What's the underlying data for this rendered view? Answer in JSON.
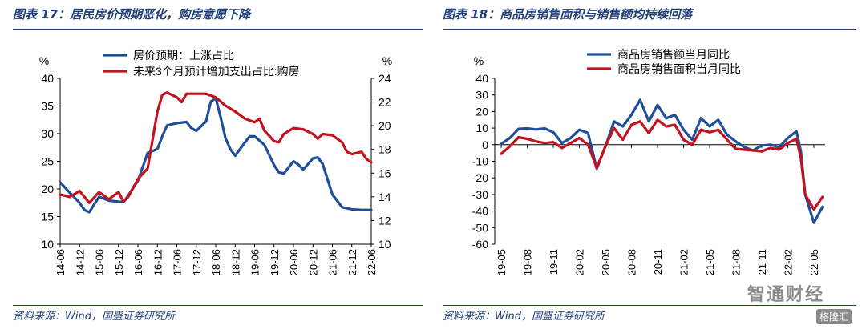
{
  "left": {
    "title": "图表 17：居民房价预期恶化，购房意愿下降",
    "source": "资料来源：Wind，国盛证券研究所",
    "chart_data": {
      "type": "line",
      "left_unit": "%",
      "right_unit": "%",
      "ylim_left": [
        10,
        40
      ],
      "yticks_left": [
        10,
        15,
        20,
        25,
        30,
        35,
        40
      ],
      "ylim_right": [
        10,
        24
      ],
      "yticks_right": [
        10,
        12,
        14,
        16,
        18,
        20,
        22,
        24
      ],
      "xlim": [
        0,
        32
      ],
      "x_ticks": [
        {
          "x": 0,
          "label": "14-06"
        },
        {
          "x": 2,
          "label": "14-12"
        },
        {
          "x": 4,
          "label": "15-06"
        },
        {
          "x": 6,
          "label": "15-12"
        },
        {
          "x": 8,
          "label": "16-06"
        },
        {
          "x": 10,
          "label": "16-12"
        },
        {
          "x": 12,
          "label": "17-06"
        },
        {
          "x": 14,
          "label": "17-12"
        },
        {
          "x": 16,
          "label": "18-06"
        },
        {
          "x": 18,
          "label": "18-12"
        },
        {
          "x": 20,
          "label": "19-06"
        },
        {
          "x": 22,
          "label": "19-12"
        },
        {
          "x": 24,
          "label": "20-06"
        },
        {
          "x": 26,
          "label": "20-12"
        },
        {
          "x": 28,
          "label": "21-06"
        },
        {
          "x": 30,
          "label": "21-12"
        },
        {
          "x": 32,
          "label": "22-06"
        }
      ],
      "legend_position": "top",
      "series": [
        {
          "name": "房价预期：上涨占比",
          "color": "#1f4e9b",
          "axis": "left",
          "points": [
            [
              0,
              21.2
            ],
            [
              1,
              19.3
            ],
            [
              2,
              17.5
            ],
            [
              2.5,
              16.2
            ],
            [
              3,
              15.8
            ],
            [
              4,
              18.6
            ],
            [
              5,
              17.9
            ],
            [
              6,
              17.7
            ],
            [
              6.5,
              17.6
            ],
            [
              7,
              18.8
            ],
            [
              8,
              21.5
            ],
            [
              9,
              26.5
            ],
            [
              10,
              27.2
            ],
            [
              10.5,
              29.5
            ],
            [
              11,
              31.5
            ],
            [
              12,
              31.9
            ],
            [
              13,
              32.1
            ],
            [
              13.5,
              31.0
            ],
            [
              14,
              30.5
            ],
            [
              15,
              32.2
            ],
            [
              15.5,
              35.8
            ],
            [
              16,
              36.4
            ],
            [
              16.5,
              33.0
            ],
            [
              17,
              29.2
            ],
            [
              17.5,
              27.2
            ],
            [
              18,
              26.0
            ],
            [
              19,
              28.4
            ],
            [
              19.5,
              29.5
            ],
            [
              20,
              29.5
            ],
            [
              21,
              28.0
            ],
            [
              22,
              24.3
            ],
            [
              22.5,
              23.0
            ],
            [
              23,
              22.8
            ],
            [
              24,
              25.0
            ],
            [
              24.5,
              24.4
            ],
            [
              25,
              23.5
            ],
            [
              26,
              25.5
            ],
            [
              26.5,
              25.7
            ],
            [
              27,
              24.5
            ],
            [
              28,
              19.0
            ],
            [
              29,
              16.7
            ],
            [
              30,
              16.3
            ],
            [
              31,
              16.2
            ],
            [
              32,
              16.2
            ]
          ]
        },
        {
          "name": "未来3个月预计增加支出占比:购房",
          "color": "#c1121f",
          "axis": "right",
          "points": [
            [
              0,
              14.2
            ],
            [
              1,
              14.0
            ],
            [
              2,
              14.5
            ],
            [
              3,
              13.5
            ],
            [
              4,
              14.4
            ],
            [
              5,
              13.8
            ],
            [
              6,
              14.4
            ],
            [
              6.5,
              13.6
            ],
            [
              7,
              14.0
            ],
            [
              8,
              15.5
            ],
            [
              9,
              16.4
            ],
            [
              10,
              21.2
            ],
            [
              10.5,
              22.6
            ],
            [
              11,
              22.8
            ],
            [
              12,
              22.4
            ],
            [
              12.5,
              22.0
            ],
            [
              13,
              22.7
            ],
            [
              14,
              22.7
            ],
            [
              15,
              22.7
            ],
            [
              16,
              22.4
            ],
            [
              17,
              21.7
            ],
            [
              18,
              21.2
            ],
            [
              19,
              20.6
            ],
            [
              20,
              20.3
            ],
            [
              20.5,
              20.6
            ],
            [
              21,
              19.6
            ],
            [
              22,
              18.7
            ],
            [
              22.5,
              18.6
            ],
            [
              23,
              19.3
            ],
            [
              24,
              19.8
            ],
            [
              25,
              19.7
            ],
            [
              26,
              19.3
            ],
            [
              26.5,
              18.9
            ],
            [
              27,
              19.3
            ],
            [
              28,
              19.2
            ],
            [
              29,
              18.6
            ],
            [
              29.5,
              17.8
            ],
            [
              30,
              17.6
            ],
            [
              31,
              17.8
            ],
            [
              31.5,
              17.2
            ],
            [
              32,
              16.9
            ]
          ]
        }
      ]
    }
  },
  "right": {
    "title": "图表 18：商品房销售面积与销售额均持续回落",
    "source": "资料来源：Wind，国盛证券研究所",
    "chart_data": {
      "type": "line",
      "left_unit": "%",
      "ylim": [
        -60,
        40
      ],
      "yticks": [
        -60,
        -50,
        -40,
        -30,
        -20,
        -10,
        0,
        10,
        20,
        30,
        40
      ],
      "xlim": [
        0,
        36
      ],
      "x_ticks": [
        {
          "x": 0,
          "label": "19-05"
        },
        {
          "x": 3,
          "label": "19-08"
        },
        {
          "x": 6,
          "label": "19-11"
        },
        {
          "x": 9,
          "label": "20-02"
        },
        {
          "x": 12,
          "label": "20-05"
        },
        {
          "x": 15,
          "label": "20-08"
        },
        {
          "x": 18,
          "label": "20-11"
        },
        {
          "x": 21,
          "label": "21-02"
        },
        {
          "x": 24,
          "label": "21-05"
        },
        {
          "x": 27,
          "label": "21-08"
        },
        {
          "x": 30,
          "label": "21-11"
        },
        {
          "x": 33,
          "label": "22-02"
        },
        {
          "x": 36,
          "label": "22-05"
        }
      ],
      "legend_position": "top",
      "series": [
        {
          "name": "商品房销售额当月同比",
          "color": "#1f4e9b",
          "points": [
            [
              0,
              0.5
            ],
            [
              1,
              4
            ],
            [
              2,
              9.5
            ],
            [
              3,
              9.8
            ],
            [
              4,
              9.2
            ],
            [
              5,
              9.8
            ],
            [
              6,
              7.5
            ],
            [
              7,
              1
            ],
            [
              8,
              4
            ],
            [
              9,
              9
            ],
            [
              10,
              7
            ],
            [
              11,
              -14.5
            ],
            [
              12,
              -1
            ],
            [
              13,
              14
            ],
            [
              14,
              11
            ],
            [
              15,
              18
            ],
            [
              16,
              27
            ],
            [
              17,
              14
            ],
            [
              18,
              24
            ],
            [
              19,
              16
            ],
            [
              20,
              18
            ],
            [
              21,
              9
            ],
            [
              22,
              3
            ],
            [
              23,
              16
            ],
            [
              24,
              11
            ],
            [
              25,
              15
            ],
            [
              26,
              6
            ],
            [
              27,
              2
            ],
            [
              28,
              -1.5
            ],
            [
              29,
              -3.5
            ],
            [
              30,
              -0.5
            ],
            [
              31,
              0
            ],
            [
              32,
              -1.5
            ],
            [
              33,
              4
            ],
            [
              34,
              8
            ],
            [
              34.5,
              -4
            ],
            [
              35,
              -30
            ],
            [
              36,
              -47
            ],
            [
              37,
              -37.5
            ]
          ]
        },
        {
          "name": "商品房销售面积当月同比",
          "color": "#c1121f",
          "points": [
            [
              0,
              -5.5
            ],
            [
              1,
              -1
            ],
            [
              2,
              4.5
            ],
            [
              3,
              3.5
            ],
            [
              4,
              2
            ],
            [
              5,
              1
            ],
            [
              6,
              1.5
            ],
            [
              7,
              -2
            ],
            [
              8,
              1
            ],
            [
              9,
              4
            ],
            [
              10,
              0
            ],
            [
              11,
              -14
            ],
            [
              12,
              -1
            ],
            [
              13,
              10
            ],
            [
              14,
              3
            ],
            [
              15,
              12
            ],
            [
              16,
              14
            ],
            [
              17,
              7
            ],
            [
              18,
              15
            ],
            [
              19,
              11
            ],
            [
              20,
              12
            ],
            [
              21,
              3
            ],
            [
              22,
              0
            ],
            [
              23,
              9
            ],
            [
              24,
              7.5
            ],
            [
              25,
              9
            ],
            [
              26,
              3
            ],
            [
              27,
              -2.5
            ],
            [
              28,
              -3
            ],
            [
              29,
              -3.5
            ],
            [
              30,
              -4
            ],
            [
              31,
              -2
            ],
            [
              32,
              -3
            ],
            [
              33,
              1
            ],
            [
              34,
              3.5
            ],
            [
              34.5,
              -8
            ],
            [
              35,
              -30
            ],
            [
              36,
              -39
            ],
            [
              37,
              -31.5
            ]
          ]
        }
      ]
    }
  },
  "watermark": {
    "main": "智通财经",
    "badge": "格隆汇"
  }
}
